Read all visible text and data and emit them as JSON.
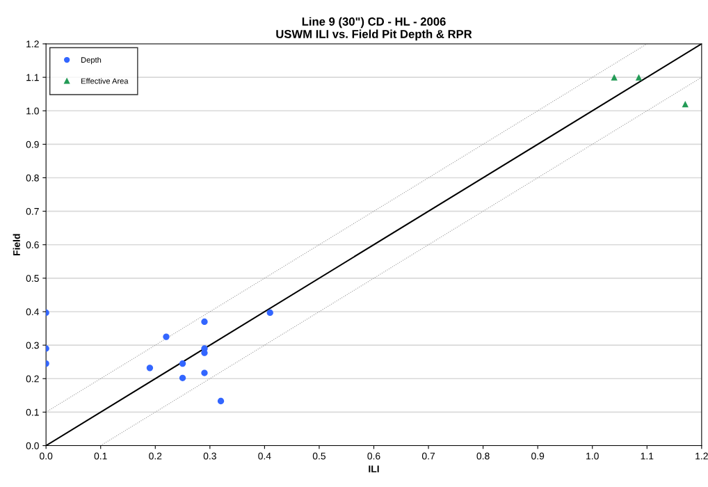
{
  "chart_data": {
    "type": "scatter",
    "title": "Line 9 (30\") CD - HL - 2006\nUSWM ILI vs. Field Pit Depth & RPR",
    "xlabel": "ILI",
    "ylabel": "Field",
    "series": [
      {
        "name": "Depth",
        "color": "#3366ff",
        "marker": "circle",
        "x": [
          0,
          0,
          0,
          0.19,
          0.22,
          0.25,
          0.25,
          0.29,
          0.29,
          0.29,
          0.29,
          0.32,
          0.41
        ],
        "values": [
          0.397,
          0.29,
          0.245,
          0.232,
          0.325,
          0.245,
          0.202,
          0.37,
          0.29,
          0.277,
          0.217,
          0.133,
          0.397
        ]
      },
      {
        "name": "Effective Area",
        "color": "#239b56",
        "marker": "triangle",
        "x": [
          1.04,
          1.085,
          1.17
        ],
        "values": [
          1.1,
          1.1,
          1.02
        ]
      },
      {
        "type": "line",
        "color": "#000000",
        "line_style": "solid",
        "marker": "none",
        "x": [
          0,
          1.2
        ],
        "values": [
          0,
          1.2
        ]
      },
      {
        "type": "line",
        "color": "#999999",
        "line_style": "dotted",
        "marker": "none",
        "x": [
          0,
          1.1
        ],
        "values": [
          0.1,
          1.2
        ]
      },
      {
        "type": "line",
        "color": "#999999",
        "line_style": "dotted",
        "marker": "none",
        "x": [
          0.1,
          1.2
        ],
        "values": [
          0,
          1.1
        ]
      }
    ],
    "xlim": [
      0,
      1.2
    ],
    "ylim": [
      0,
      1.2
    ],
    "xticks": [
      {
        "value": 0,
        "label": "0.0"
      },
      0.1,
      0.2,
      0.3,
      0.4,
      0.5,
      0.6,
      0.7,
      0.8,
      0.9,
      {
        "value": 1,
        "label": "1.0"
      },
      1.1,
      1.2
    ],
    "yticks": [
      {
        "value": 0,
        "label": "0.0"
      },
      0.1,
      0.2,
      0.3,
      0.4,
      0.5,
      0.6,
      0.7,
      0.8,
      0.9,
      {
        "value": 1,
        "label": "1.0"
      },
      1.1,
      1.2
    ],
    "grid": "y",
    "legend": "top left"
  }
}
